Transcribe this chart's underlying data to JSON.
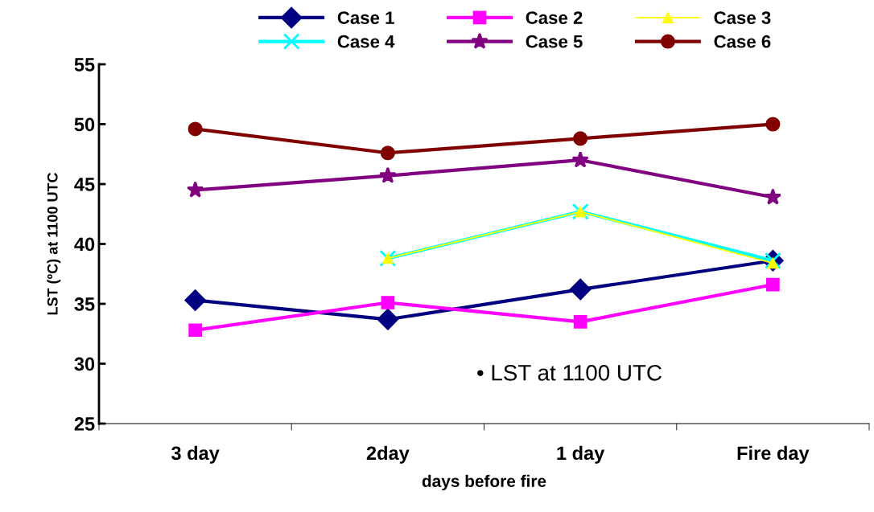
{
  "chart_data": {
    "type": "line",
    "xlabel": "days before fire",
    "ylabel": "LST (ºC) at 1100 UTC",
    "categories": [
      "3 day",
      "2day",
      "1 day",
      "Fire day"
    ],
    "series": [
      {
        "name": "Case 1",
        "color": "#000080",
        "marker": "diamond",
        "values": [
          35.3,
          33.7,
          36.2,
          38.6
        ]
      },
      {
        "name": "Case 2",
        "color": "#ff00ff",
        "marker": "square",
        "values": [
          32.8,
          35.1,
          33.5,
          36.6
        ]
      },
      {
        "name": "Case 3",
        "color": "#ffff00",
        "marker": "triangle",
        "values": [
          null,
          38.8,
          42.7,
          38.4
        ]
      },
      {
        "name": "Case 4",
        "color": "#00ffff",
        "marker": "cross",
        "values": [
          null,
          38.8,
          42.7,
          38.6
        ]
      },
      {
        "name": "Case 5",
        "color": "#800080",
        "marker": "star",
        "values": [
          44.5,
          45.7,
          47.0,
          43.9
        ]
      },
      {
        "name": "Case 6",
        "color": "#800000",
        "marker": "circle",
        "values": [
          49.6,
          47.6,
          48.8,
          50.0
        ]
      }
    ],
    "ylim": [
      25,
      55
    ],
    "yticks": [
      25,
      30,
      35,
      40,
      45,
      50,
      55
    ],
    "annotations": [
      "• LST at 1100 UTC"
    ],
    "legend": "top",
    "grid": false
  }
}
